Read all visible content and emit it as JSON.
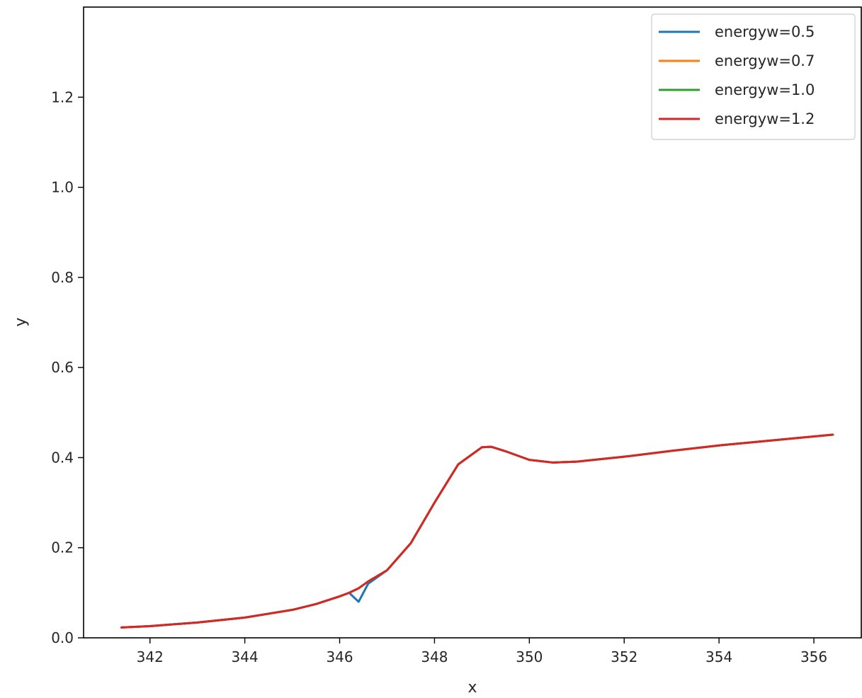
{
  "chart_data": {
    "type": "line",
    "title": "",
    "xlabel": "x",
    "ylabel": "y",
    "xlim": [
      340.6,
      357.0
    ],
    "ylim": [
      0.0,
      1.4
    ],
    "xticks": [
      342,
      344,
      346,
      348,
      350,
      352,
      354,
      356
    ],
    "yticks": [
      0.0,
      0.2,
      0.4,
      0.6,
      0.8,
      1.0,
      1.2
    ],
    "xtick_labels": [
      "342",
      "344",
      "346",
      "348",
      "350",
      "352",
      "354",
      "356"
    ],
    "ytick_labels": [
      "0.0",
      "0.2",
      "0.4",
      "0.6",
      "0.8",
      "1.0",
      "1.2"
    ],
    "grid": false,
    "legend": "top-right",
    "series": [
      {
        "name": "energyw=0.5",
        "color": "#1f77b4",
        "x": [
          341.4,
          342.0,
          343.0,
          344.0,
          345.0,
          345.5,
          346.0,
          346.2,
          346.4,
          346.6,
          347.0,
          347.5,
          348.0,
          348.5,
          349.0,
          349.2,
          349.5,
          350.0,
          350.5,
          351.0,
          352.0,
          353.0,
          354.0,
          355.0,
          356.4
        ],
        "y": [
          0.023,
          0.026,
          0.034,
          0.045,
          0.062,
          0.075,
          0.092,
          0.1,
          0.08,
          0.12,
          0.15,
          0.21,
          0.3,
          0.385,
          0.423,
          0.424,
          0.414,
          0.395,
          0.389,
          0.391,
          0.402,
          0.415,
          0.427,
          0.437,
          0.451
        ]
      },
      {
        "name": "energyw=0.7",
        "color": "#ff7f0e",
        "x": [
          341.4,
          342.0,
          343.0,
          344.0,
          345.0,
          345.5,
          346.0,
          346.2,
          346.4,
          346.6,
          347.0,
          347.5,
          348.0,
          348.5,
          349.0,
          349.2,
          349.5,
          350.0,
          350.5,
          351.0,
          352.0,
          353.0,
          354.0,
          355.0,
          356.4
        ],
        "y": [
          0.023,
          0.026,
          0.034,
          0.045,
          0.062,
          0.075,
          0.092,
          0.1,
          0.11,
          0.125,
          0.15,
          0.21,
          0.3,
          0.385,
          0.423,
          0.424,
          0.414,
          0.395,
          0.389,
          0.391,
          0.402,
          0.415,
          0.427,
          0.437,
          0.451
        ]
      },
      {
        "name": "energyw=1.0",
        "color": "#2ca02c",
        "x": [
          341.4,
          342.0,
          343.0,
          344.0,
          345.0,
          345.5,
          346.0,
          346.2,
          346.4,
          346.6,
          347.0,
          347.5,
          348.0,
          348.5,
          349.0,
          349.2,
          349.5,
          350.0,
          350.5,
          351.0,
          352.0,
          353.0,
          354.0,
          355.0,
          356.4
        ],
        "y": [
          0.023,
          0.026,
          0.034,
          0.045,
          0.062,
          0.075,
          0.092,
          0.1,
          0.11,
          0.125,
          0.15,
          0.21,
          0.3,
          0.385,
          0.423,
          0.424,
          0.414,
          0.395,
          0.389,
          0.391,
          0.402,
          0.415,
          0.427,
          0.437,
          0.451
        ]
      },
      {
        "name": "energyw=1.2",
        "color": "#d62728",
        "x": [
          341.4,
          342.0,
          343.0,
          344.0,
          345.0,
          345.5,
          346.0,
          346.2,
          346.4,
          346.6,
          347.0,
          347.5,
          348.0,
          348.5,
          349.0,
          349.2,
          349.5,
          350.0,
          350.5,
          351.0,
          352.0,
          353.0,
          354.0,
          355.0,
          356.4
        ],
        "y": [
          0.023,
          0.026,
          0.034,
          0.045,
          0.062,
          0.075,
          0.092,
          0.1,
          0.11,
          0.125,
          0.15,
          0.21,
          0.3,
          0.385,
          0.423,
          0.424,
          0.414,
          0.395,
          0.389,
          0.391,
          0.402,
          0.415,
          0.427,
          0.437,
          0.451
        ]
      }
    ]
  }
}
